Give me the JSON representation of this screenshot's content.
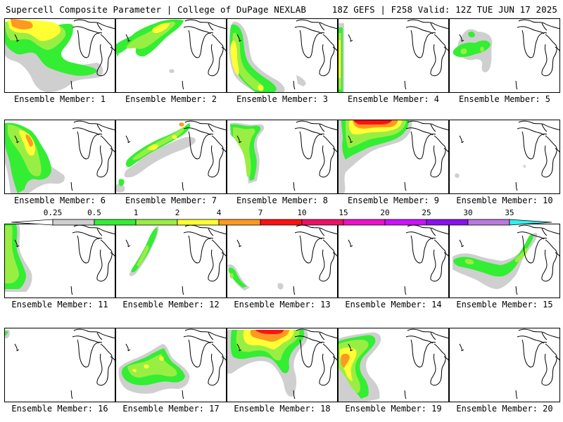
{
  "header": {
    "left": "Supercell Composite Parameter | College of DuPage NEXLAB",
    "right": "18Z GEFS | F258 Valid: 12Z TUE JUN 17 2025"
  },
  "colors": {
    "0.25": "#cfcfcf",
    "0.5": "#33ee33",
    "1": "#99ee44",
    "2": "#ffff33",
    "4": "#ff9922",
    "7": "#ff1111",
    "10": "#ee1166",
    "15": "#ee11cc",
    "20": "#cc11ff",
    "25": "#8811ee",
    "30": "#bb77dd",
    "35": "#33eeee",
    "coast": "#000000"
  },
  "legend": {
    "labels": [
      "0.25",
      "0.5",
      "1",
      "2",
      "4",
      "7",
      "10",
      "15",
      "20",
      "25",
      "30",
      "35"
    ]
  },
  "panels": [
    {
      "label": "Ensemble Member: 1",
      "max_level": "4"
    },
    {
      "label": "Ensemble Member: 2",
      "max_level": "2"
    },
    {
      "label": "Ensemble Member: 3",
      "max_level": "2"
    },
    {
      "label": "Ensemble Member: 4",
      "max_level": "2"
    },
    {
      "label": "Ensemble Member: 5",
      "max_level": "1"
    },
    {
      "label": "Ensemble Member: 6",
      "max_level": "4"
    },
    {
      "label": "Ensemble Member: 7",
      "max_level": "4"
    },
    {
      "label": "Ensemble Member: 8",
      "max_level": "1"
    },
    {
      "label": "Ensemble Member: 9",
      "max_level": "7"
    },
    {
      "label": "Ensemble Member: 10",
      "max_level": "0.25"
    },
    {
      "label": "Ensemble Member: 11",
      "max_level": "1"
    },
    {
      "label": "Ensemble Member: 12",
      "max_level": "1"
    },
    {
      "label": "Ensemble Member: 13",
      "max_level": "0.5"
    },
    {
      "label": "Ensemble Member: 14",
      "max_level": "none"
    },
    {
      "label": "Ensemble Member: 15",
      "max_level": "1"
    },
    {
      "label": "Ensemble Member: 16",
      "max_level": "0.5"
    },
    {
      "label": "Ensemble Member: 17",
      "max_level": "2"
    },
    {
      "label": "Ensemble Member: 18",
      "max_level": "7"
    },
    {
      "label": "Ensemble Member: 19",
      "max_level": "4"
    },
    {
      "label": "Ensemble Member: 20",
      "max_level": "none"
    }
  ]
}
